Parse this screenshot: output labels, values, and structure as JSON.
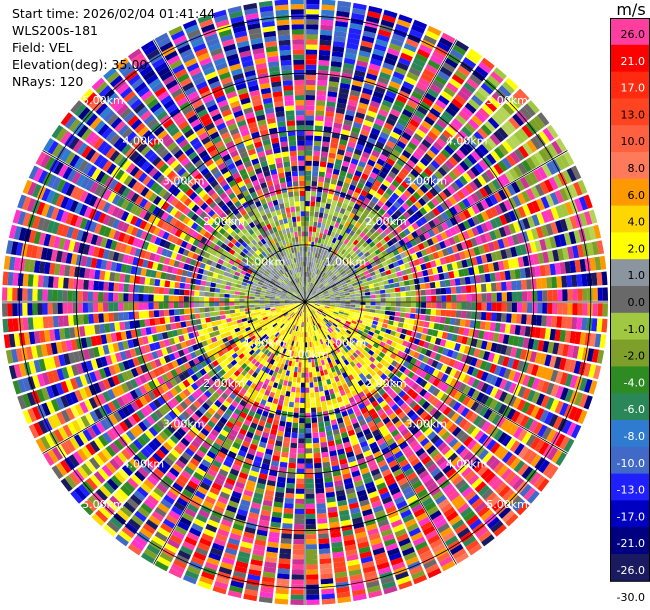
{
  "info": {
    "start_time": "Start time: 2026/02/04 01:41:44",
    "instrument": "WLS200s-181",
    "field": "Field: VEL",
    "elevation": "Elevation(deg): 35.00",
    "nrays": "NRays: 120"
  },
  "colorbar": {
    "unit": "m/s",
    "levels": [
      {
        "label": "26.0",
        "color": "#ff3fa0"
      },
      {
        "label": "21.0",
        "color": "#ff0000"
      },
      {
        "label": "17.0",
        "color": "#ff2a10"
      },
      {
        "label": "13.0",
        "color": "#ff4422"
      },
      {
        "label": "10.0",
        "color": "#ff6040"
      },
      {
        "label": "8.0",
        "color": "#ff7a5a"
      },
      {
        "label": "6.0",
        "color": "#ff9900"
      },
      {
        "label": "4.0",
        "color": "#ffd700"
      },
      {
        "label": "2.0",
        "color": "#ffff00"
      },
      {
        "label": "1.0",
        "color": "#8b95a0"
      },
      {
        "label": "0.0",
        "color": "#696969"
      },
      {
        "label": "-1.0",
        "color": "#a0c840"
      },
      {
        "label": "-2.0",
        "color": "#7ea02a"
      },
      {
        "label": "-4.0",
        "color": "#2e8b22"
      },
      {
        "label": "-6.0",
        "color": "#2a8858"
      },
      {
        "label": "-8.0",
        "color": "#2e7bd0"
      },
      {
        "label": "-10.0",
        "color": "#4169c8"
      },
      {
        "label": "-13.0",
        "color": "#2020ff"
      },
      {
        "label": "-17.0",
        "color": "#0000c0"
      },
      {
        "label": "-21.0",
        "color": "#000080"
      },
      {
        "label": "-26.0",
        "color": "#1a1a60"
      },
      {
        "label": "-30.0",
        "color": ""
      }
    ]
  },
  "chart_data": {
    "type": "heatmap",
    "field": "VEL",
    "nrays": 120,
    "elevation_deg": 35.0,
    "range_unit": "km",
    "range_rings_km": [
      1.0,
      2.0,
      3.0,
      4.0,
      5.0
    ],
    "ring_labels": [
      "1.00km",
      "2.00km",
      "3.00km",
      "4.00km",
      "5.00km"
    ],
    "max_range_km": 5.3,
    "value_range": [
      -30.0,
      30.0
    ],
    "description_of_pattern": "near-field: gray/olive-green (-1..1 m/s) to the north, yellow (2..4 m/s) to the south; far-field: noisy mixture; blue sector to north-west, red/orange to east and south-east at long range"
  }
}
